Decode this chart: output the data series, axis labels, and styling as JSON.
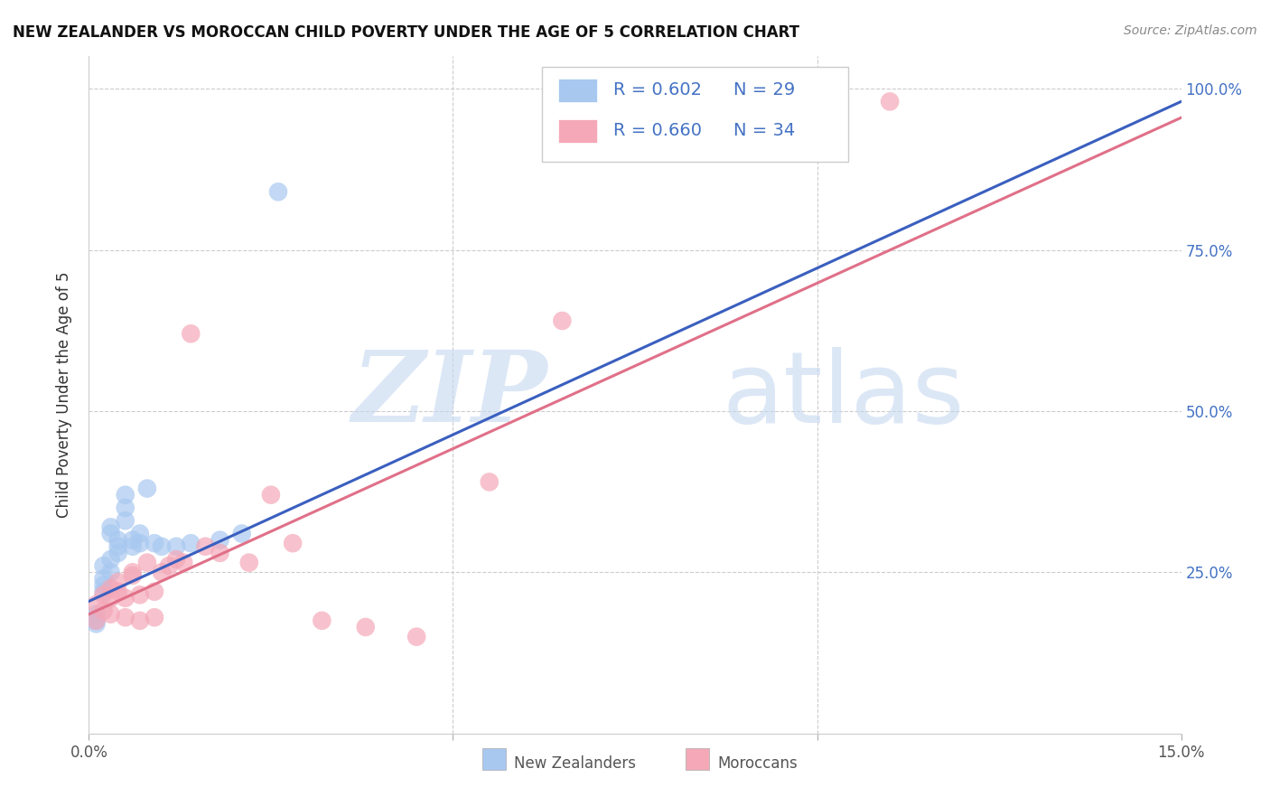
{
  "title": "NEW ZEALANDER VS MOROCCAN CHILD POVERTY UNDER THE AGE OF 5 CORRELATION CHART",
  "source": "Source: ZipAtlas.com",
  "ylabel": "Child Poverty Under the Age of 5",
  "xmin": 0.0,
  "xmax": 0.15,
  "ymin": 0.0,
  "ymax": 1.05,
  "watermark_zip": "ZIP",
  "watermark_atlas": "atlas",
  "nz_color": "#A8C8F0",
  "moroccan_color": "#F4A8B8",
  "nz_line_color": "#3A5FBF",
  "moroccan_line_color": "#E07088",
  "legend_text_color": "#4472C4",
  "legend_R_nz": "R = 0.602",
  "legend_N_nz": "N = 29",
  "legend_R_mo": "R = 0.660",
  "legend_N_mo": "N = 34",
  "legend_label_nz": "New Zealanders",
  "legend_label_mo": "Moroccans",
  "nz_x": [
    0.001,
    0.001,
    0.001,
    0.002,
    0.002,
    0.002,
    0.002,
    0.003,
    0.003,
    0.003,
    0.003,
    0.004,
    0.004,
    0.004,
    0.005,
    0.005,
    0.005,
    0.006,
    0.006,
    0.007,
    0.007,
    0.008,
    0.009,
    0.01,
    0.012,
    0.014,
    0.018,
    0.021,
    0.026
  ],
  "nz_y": [
    0.17,
    0.185,
    0.175,
    0.22,
    0.23,
    0.24,
    0.26,
    0.25,
    0.27,
    0.31,
    0.32,
    0.29,
    0.28,
    0.3,
    0.35,
    0.33,
    0.37,
    0.29,
    0.3,
    0.295,
    0.31,
    0.38,
    0.295,
    0.29,
    0.29,
    0.295,
    0.3,
    0.31,
    0.84
  ],
  "moroccan_x": [
    0.001,
    0.001,
    0.002,
    0.002,
    0.003,
    0.003,
    0.003,
    0.004,
    0.004,
    0.005,
    0.005,
    0.006,
    0.006,
    0.007,
    0.007,
    0.008,
    0.009,
    0.009,
    0.01,
    0.011,
    0.012,
    0.013,
    0.014,
    0.016,
    0.018,
    0.022,
    0.025,
    0.028,
    0.032,
    0.038,
    0.045,
    0.055,
    0.065,
    0.11
  ],
  "moroccan_y": [
    0.2,
    0.175,
    0.215,
    0.19,
    0.185,
    0.225,
    0.21,
    0.235,
    0.22,
    0.21,
    0.18,
    0.25,
    0.245,
    0.215,
    0.175,
    0.265,
    0.22,
    0.18,
    0.25,
    0.26,
    0.27,
    0.265,
    0.62,
    0.29,
    0.28,
    0.265,
    0.37,
    0.295,
    0.175,
    0.165,
    0.15,
    0.39,
    0.64,
    0.98
  ],
  "nz_line_x0": 0.0,
  "nz_line_x1": 0.15,
  "nz_line_y0": 0.205,
  "nz_line_y1": 0.98,
  "mo_line_x0": 0.0,
  "mo_line_x1": 0.15,
  "mo_line_y0": 0.185,
  "mo_line_y1": 0.955
}
